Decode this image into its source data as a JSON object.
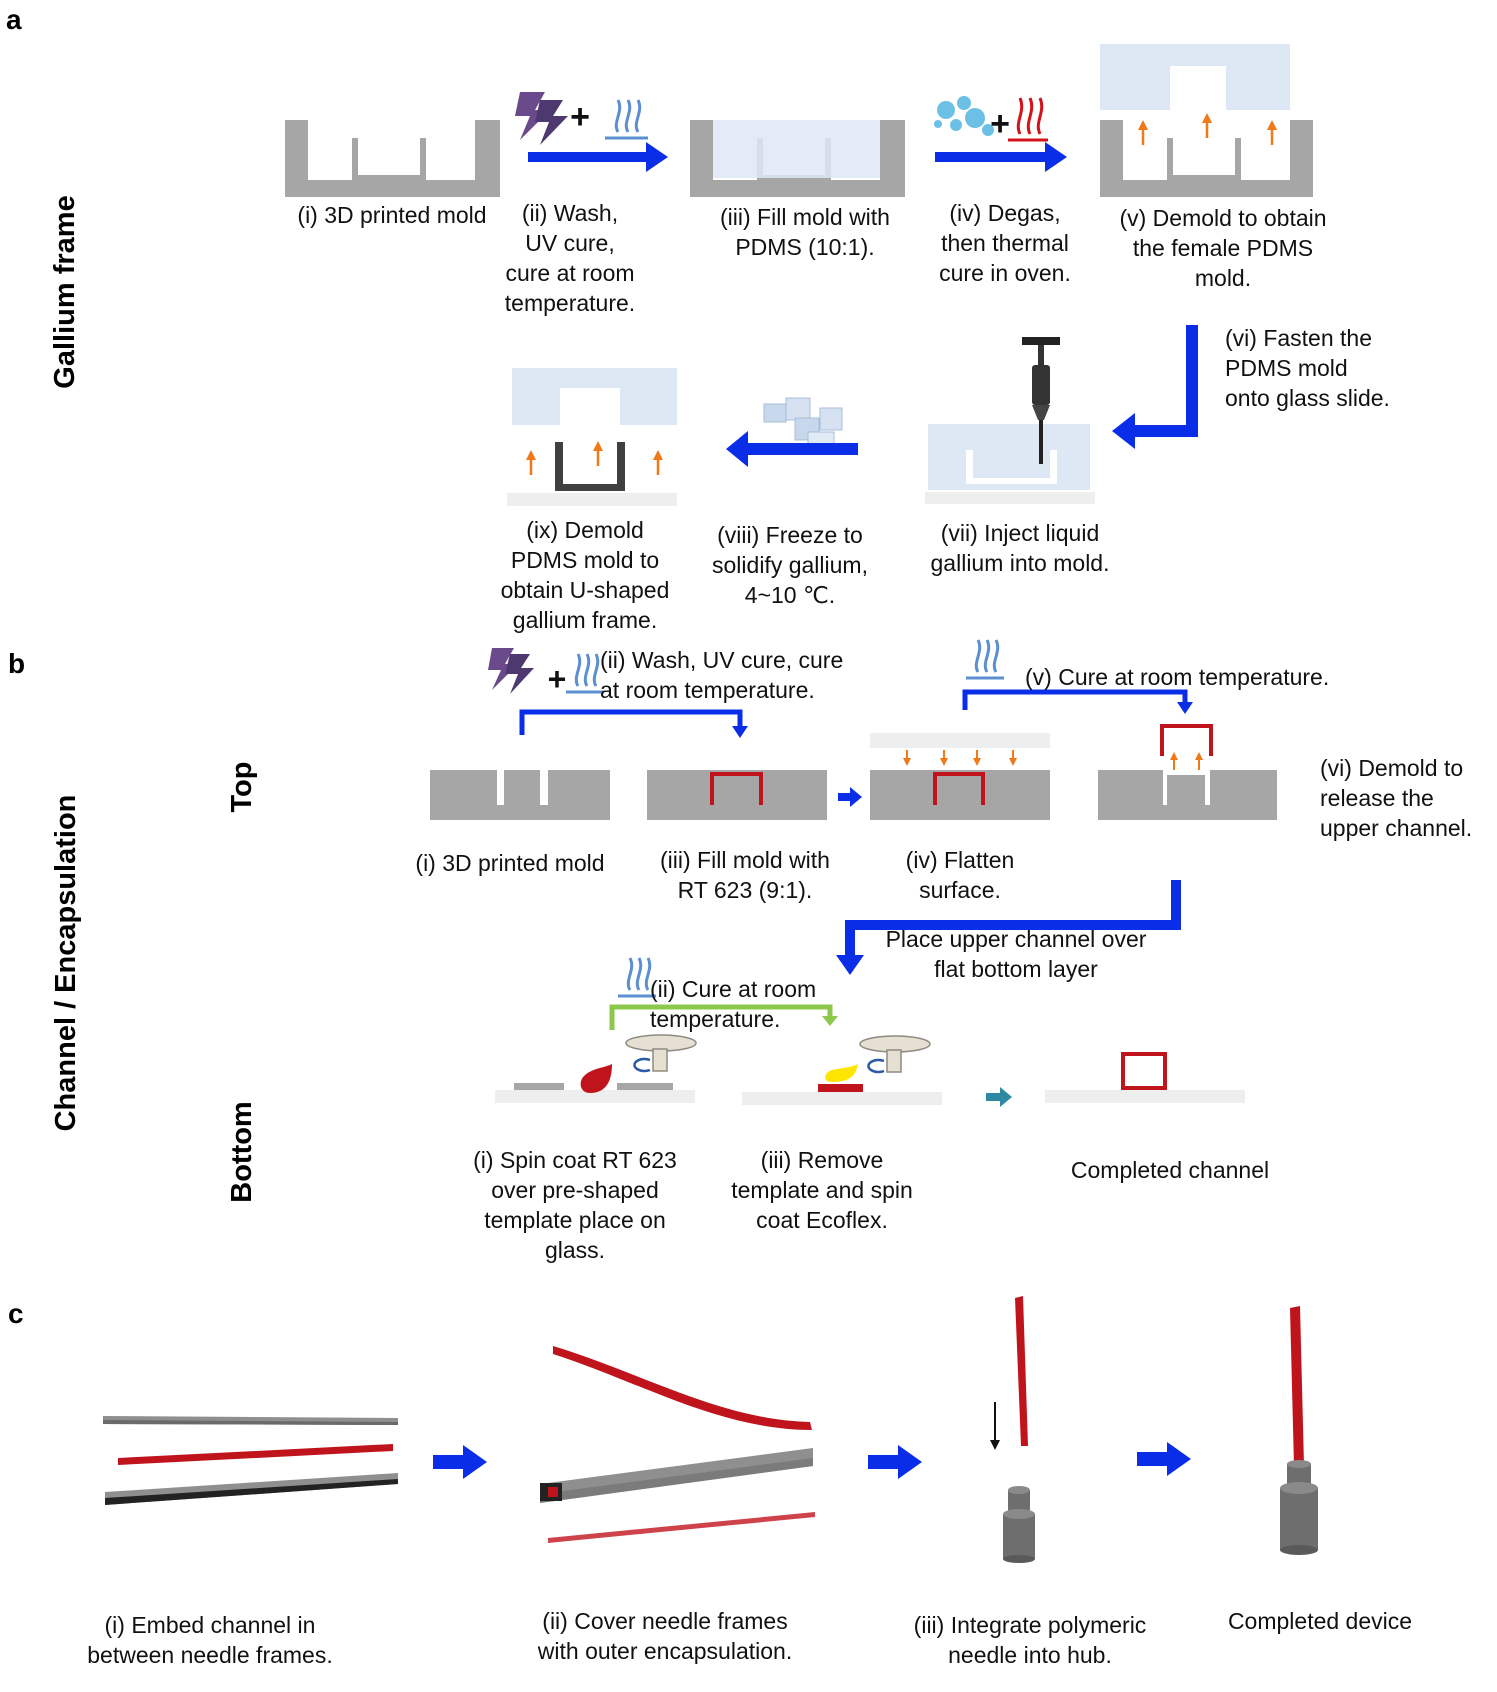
{
  "panels": {
    "a": "a",
    "b": "b",
    "c": "c"
  },
  "section_labels": {
    "gallium_frame": "Gallium frame",
    "channel_encapsulation": "Channel / Encapsulation",
    "top": "Top",
    "bottom": "Bottom"
  },
  "panel_a": {
    "step1": "(i) 3D printed mold",
    "step2": "(ii) Wash,\nUV cure,\ncure at room\ntemperature.",
    "step3": "(iii) Fill mold with\nPDMS (10:1).",
    "step4": "(iv) Degas,\nthen thermal\ncure in oven.",
    "step5": "(v) Demold to obtain\nthe female PDMS\nmold.",
    "step6": "(vi) Fasten the\nPDMS mold\nonto glass slide.",
    "step7": "(vii) Inject liquid\ngallium into mold.",
    "step8": "(viii) Freeze to\nsolidify gallium,\n4~10 ℃.",
    "step9": "(ix) Demold\nPDMS mold to\nobtain U-shaped\ngallium frame."
  },
  "panel_b": {
    "top_step1": "(i) 3D printed mold",
    "top_step2": "(ii) Wash, UV cure, cure\nat room temperature.",
    "top_step3": "(iii) Fill mold with\nRT 623 (9:1).",
    "top_step4": "(iv) Flatten\nsurface.",
    "top_step5": "(v) Cure at room temperature.",
    "top_step6": "(vi) Demold to\nrelease the\nupper channel.",
    "place_upper": "Place upper channel over\nflat bottom layer",
    "bottom_step1": "(i) Spin coat RT 623\nover pre-shaped\ntemplate place on\nglass.",
    "bottom_step2": "(ii) Cure at room\ntemperature.",
    "bottom_step3": "(iii) Remove\ntemplate and spin\ncoat Ecoflex.",
    "bottom_done": "Completed channel"
  },
  "panel_c": {
    "step1": "(i) Embed channel in\nbetween needle frames.",
    "step2": "(ii) Cover needle frames\nwith outer encapsulation.",
    "step3": "(iii) Integrate polymeric\nneedle into hub.",
    "step4": "Completed device"
  },
  "icons": [
    "uv-lightning-icon",
    "plus-icon",
    "heat-waves-icon",
    "bubbles-icon",
    "syringe-icon",
    "ice-cubes-icon",
    "spin-coater-icon"
  ],
  "colors": {
    "mold_gray": "#a6a6a6",
    "pdms_light_blue": "#dde8f4",
    "arrow_blue": "#0a2ee8",
    "channel_red": "#c0141c",
    "lift_orange": "#f07a18",
    "cure_green": "#8cc84a",
    "uv_purple": "#6b4a8c",
    "glass_gray": "#eeeeee"
  }
}
